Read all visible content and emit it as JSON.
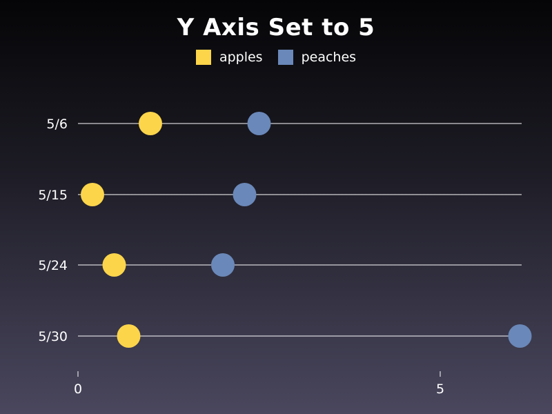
{
  "chart_data": {
    "type": "scatter",
    "title": "Y Axis Set to 5",
    "categories": [
      "5/6",
      "5/15",
      "5/24",
      "5/30"
    ],
    "series": [
      {
        "name": "apples",
        "color": "#fdd54a",
        "values": [
          1.0,
          0.2,
          0.5,
          0.7
        ]
      },
      {
        "name": "peaches",
        "color": "#6a88b9",
        "values": [
          2.5,
          2.3,
          2.0,
          6.1
        ]
      }
    ],
    "xlim": [
      0,
      6.1
    ],
    "xticks": [
      0,
      5
    ],
    "xlabel": "",
    "ylabel": "",
    "legend": "top-center",
    "grid": "horizontal lines per category"
  }
}
